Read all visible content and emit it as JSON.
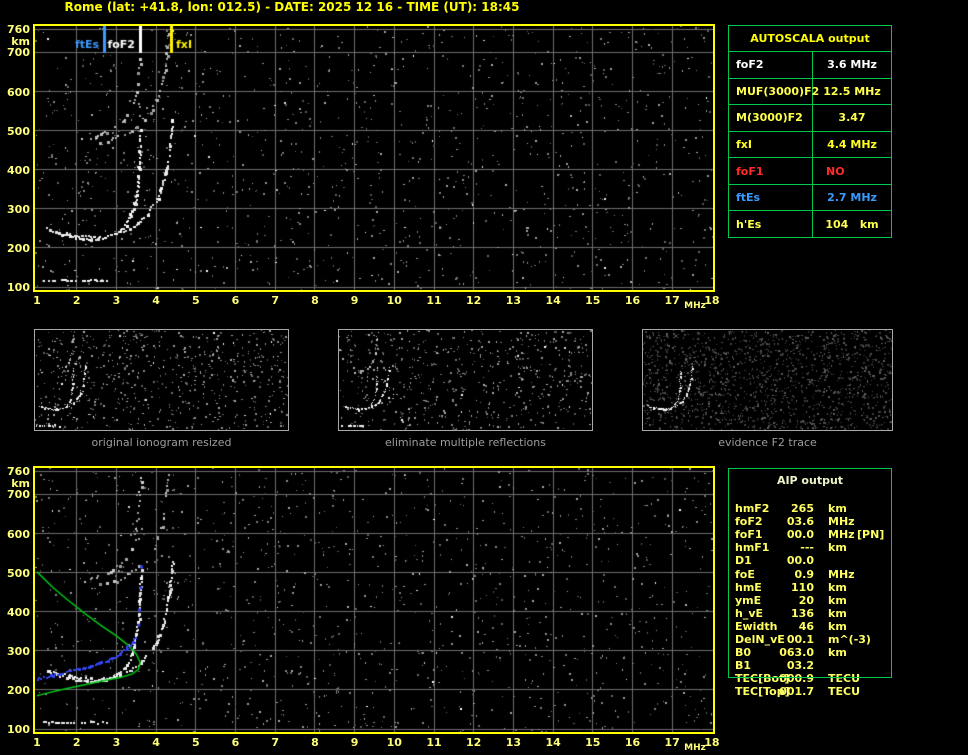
{
  "title": "Rome (lat: +41.8, lon: 012.5) - DATE: 2025 12 16 - TIME (UT): 18:45",
  "colors": {
    "accent_yellow": "#ffff00",
    "tick_yellow": "#ffff7a",
    "grid_gray": "#6e6e6e",
    "table_green": "#00c84b",
    "status_red": "#ff2a2a",
    "status_blue": "#3a9bff",
    "white": "#ffffff",
    "row_yellow": "#ffff4d",
    "profile_green": "#00c818",
    "trace_blue": "#3344ee",
    "caption_gray": "#9c9c9c"
  },
  "autoscala_table": {
    "header": "AUTOSCALA output",
    "rows": [
      {
        "label": "foF2",
        "value": "3.6 MHz",
        "color": "#ffffff",
        "align": "center"
      },
      {
        "label": "MUF(3000)F2",
        "value": "12.5 MHz",
        "color": "#ffff4d",
        "align": "center"
      },
      {
        "label": "M(3000)F2",
        "value": "3.47",
        "color": "#ffff4d",
        "align": "center"
      },
      {
        "label": "fxI",
        "value": "4.4 MHz",
        "color": "#ffff21",
        "align": "center"
      },
      {
        "label": "foF1",
        "value": "NO",
        "color": "#ff2a2a",
        "align": "left"
      },
      {
        "label": "ftEs",
        "value": "2.7 MHz",
        "color": "#3a9bff",
        "align": "center"
      },
      {
        "label": "h'Es",
        "value": "104   km",
        "color": "#ffff4d",
        "align": "center"
      }
    ]
  },
  "aip_table": {
    "header": "AIP output",
    "rows": [
      {
        "label": "hmF2",
        "value": "265",
        "unit": "km",
        "extra": ""
      },
      {
        "label": "foF2",
        "value": "03.6",
        "unit": "MHz",
        "extra": ""
      },
      {
        "label": "foF1",
        "value": "00.0",
        "unit": "MHz",
        "extra": "[PN]"
      },
      {
        "label": "hmF1",
        "value": "---",
        "unit": "km",
        "extra": ""
      },
      {
        "label": "D1",
        "value": "00.0",
        "unit": "",
        "extra": ""
      },
      {
        "label": "foE",
        "value": "0.9",
        "unit": "MHz",
        "extra": ""
      },
      {
        "label": "hmE",
        "value": "110",
        "unit": "km",
        "extra": ""
      },
      {
        "label": "ymE",
        "value": "20",
        "unit": "km",
        "extra": ""
      },
      {
        "label": "h_vE",
        "value": "136",
        "unit": "km",
        "extra": ""
      },
      {
        "label": "Ewidth",
        "value": "46",
        "unit": "km",
        "extra": ""
      },
      {
        "label": "DelN_vE",
        "value": "00.1",
        "unit": "m^(-3)",
        "extra": ""
      },
      {
        "label": "B0",
        "value": "063.0",
        "unit": "km",
        "extra": ""
      },
      {
        "label": "B1",
        "value": "03.2",
        "unit": "",
        "extra": ""
      },
      {
        "label": "TEC[Bot]",
        "value": "000.9",
        "unit": "TECU",
        "extra": ""
      },
      {
        "label": "TEC[Top]",
        "value": "001.7",
        "unit": "TECU",
        "extra": ""
      }
    ]
  },
  "thumbnails": [
    {
      "caption": "original ionogram resized",
      "seed": 3,
      "noise": 640,
      "dim_noise": false,
      "show": [
        "es",
        "f2o",
        "f2x",
        "hop2o",
        "hop2x"
      ]
    },
    {
      "caption": "eliminate multiple reflections",
      "seed": 5,
      "noise": 610,
      "dim_noise": false,
      "show": [
        "es",
        "f2o",
        "f2x",
        "hop2o"
      ]
    },
    {
      "caption": "evidence F2 trace",
      "seed": 9,
      "noise": 1500,
      "dim_noise": true,
      "show": [
        "f2o",
        "f2x"
      ]
    }
  ],
  "chart_data": {
    "type": "scatter",
    "xlabel": "MHz",
    "ylabel": "km",
    "xlim": [
      1,
      18
    ],
    "ylim": [
      100,
      760
    ],
    "grid": true,
    "x_ticks": [
      1,
      2,
      3,
      4,
      5,
      6,
      7,
      8,
      9,
      10,
      11,
      12,
      13,
      14,
      15,
      16,
      17,
      18
    ],
    "y_ticks": [
      760,
      700,
      600,
      500,
      400,
      300,
      200,
      100
    ],
    "grid_y": [
      760,
      700,
      600,
      500,
      400,
      300,
      200,
      100
    ],
    "plots": [
      {
        "id": "top",
        "noise_seed": 7,
        "has_markers": true,
        "has_profile": false
      },
      {
        "id": "bottom",
        "noise_seed": 13,
        "has_markers": false,
        "has_profile": true
      }
    ],
    "markers": [
      {
        "label": "ftEs",
        "freq_mhz": 2.7,
        "color": "#3a9bff",
        "side": "left"
      },
      {
        "label": "foF2",
        "freq_mhz": 3.6,
        "color": "#ffffff",
        "side": "left"
      },
      {
        "label": "fxI",
        "freq_mhz": 4.4,
        "color": "#fff200",
        "side": "right"
      }
    ],
    "traces": {
      "es": {
        "name": "Es-layer-trace",
        "points": [
          [
            1.15,
            118
          ],
          [
            2.74,
            117
          ]
        ]
      },
      "f2o": {
        "name": "F2-ordinary-trace",
        "points": [
          [
            1.25,
            250
          ],
          [
            1.6,
            236
          ],
          [
            2.0,
            226
          ],
          [
            2.4,
            222
          ],
          [
            2.7,
            226
          ],
          [
            3.0,
            238
          ],
          [
            3.2,
            256
          ],
          [
            3.35,
            282
          ],
          [
            3.45,
            315
          ],
          [
            3.52,
            355
          ],
          [
            3.57,
            405
          ],
          [
            3.6,
            465
          ],
          [
            3.62,
            515
          ]
        ]
      },
      "f2x": {
        "name": "F2-extraordinary-trace",
        "points": [
          [
            1.7,
            240
          ],
          [
            2.1,
            230
          ],
          [
            2.5,
            227
          ],
          [
            2.9,
            233
          ],
          [
            3.3,
            247
          ],
          [
            3.6,
            268
          ],
          [
            3.85,
            297
          ],
          [
            4.05,
            332
          ],
          [
            4.2,
            378
          ],
          [
            4.3,
            432
          ],
          [
            4.38,
            492
          ],
          [
            4.42,
            532
          ]
        ]
      },
      "hop2o": {
        "name": "second-hop-ordinary",
        "points": [
          [
            2.05,
            475
          ],
          [
            2.5,
            488
          ],
          [
            2.9,
            506
          ],
          [
            3.2,
            532
          ],
          [
            3.4,
            566
          ],
          [
            3.5,
            612
          ],
          [
            3.57,
            672
          ],
          [
            3.61,
            748
          ]
        ]
      },
      "hop2x": {
        "name": "second-hop-extraordinary",
        "points": [
          [
            2.6,
            468
          ],
          [
            3.0,
            481
          ],
          [
            3.4,
            502
          ],
          [
            3.75,
            532
          ],
          [
            4.0,
            572
          ],
          [
            4.15,
            622
          ],
          [
            4.25,
            692
          ],
          [
            4.3,
            756
          ]
        ]
      }
    },
    "profile_green": [
      [
        1.0,
        502
      ],
      [
        1.4,
        462
      ],
      [
        1.8,
        428
      ],
      [
        2.2,
        396
      ],
      [
        2.6,
        366
      ],
      [
        3.0,
        338
      ],
      [
        3.3,
        314
      ],
      [
        3.5,
        292
      ],
      [
        3.6,
        270
      ],
      [
        3.55,
        252
      ],
      [
        3.4,
        241
      ],
      [
        3.1,
        232
      ],
      [
        2.7,
        224
      ],
      [
        2.3,
        215
      ],
      [
        1.9,
        207
      ],
      [
        1.5,
        198
      ],
      [
        1.1,
        188
      ],
      [
        1.0,
        185
      ]
    ],
    "restored_blue": [
      [
        1.0,
        228
      ],
      [
        1.4,
        238
      ],
      [
        1.8,
        248
      ],
      [
        2.2,
        258
      ],
      [
        2.6,
        270
      ],
      [
        2.9,
        282
      ],
      [
        3.1,
        295
      ],
      [
        3.3,
        311
      ],
      [
        3.42,
        324
      ],
      [
        3.5,
        338
      ]
    ],
    "restored_blue_sparse": [
      [
        3.55,
        367
      ],
      [
        3.57,
        406
      ],
      [
        3.6,
        462
      ],
      [
        3.62,
        516
      ]
    ]
  }
}
